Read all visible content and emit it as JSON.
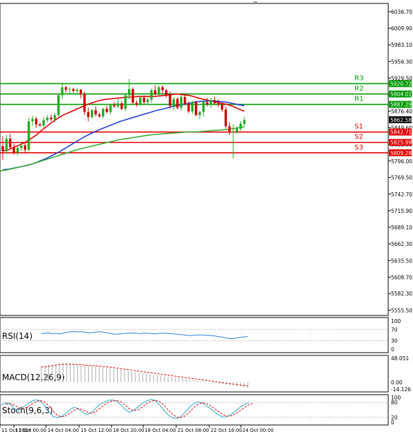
{
  "chart_data": {
    "type": "candlestick",
    "price_axis": {
      "ylim": [
        5547,
        6050
      ],
      "ticks": [
        "6036.70",
        "6009.90",
        "5983.10",
        "5956.30",
        "5929.50",
        "5902.70",
        "5876.40",
        "5849.60",
        "5822.80",
        "5796.00",
        "5769.50",
        "5742.70",
        "5715.90",
        "5689.10",
        "5662.30",
        "5635.50",
        "5608.70",
        "5582.30",
        "5555.50"
      ]
    },
    "levels": [
      {
        "name": "R3",
        "value": 5920.72,
        "label": "5920.72",
        "color": "#009900"
      },
      {
        "name": "R2",
        "value": 5904.01,
        "label": "5904.01",
        "color": "#009900"
      },
      {
        "name": "R1",
        "value": 5887.29,
        "label": "5887.29",
        "color": "#009900"
      },
      {
        "name": "S1",
        "value": 5842.71,
        "label": "5842.71",
        "color": "#e00000"
      },
      {
        "name": "S2",
        "value": 5825.99,
        "label": "5825.99",
        "color": "#e00000"
      },
      {
        "name": "S3",
        "value": 5809.28,
        "label": "5809.28",
        "color": "#e00000"
      }
    ],
    "current_price": {
      "value": 5862.58,
      "label": "5862.58"
    },
    "x_labels": [
      "11 Oct 2024",
      "11 Oct 00:00",
      "14 Oct 04:00",
      "15 Oct 12:00",
      "16 Oct 20:00",
      "18 Oct 04:00",
      "21 Oct 08:00",
      "22 Oct 16:00",
      "24 Oct 00:00"
    ],
    "candles": [
      [
        5820,
        5836,
        5798,
        5812
      ],
      [
        5812,
        5838,
        5808,
        5832
      ],
      [
        5832,
        5840,
        5816,
        5818
      ],
      [
        5818,
        5824,
        5806,
        5810
      ],
      [
        5810,
        5820,
        5805,
        5817
      ],
      [
        5817,
        5826,
        5812,
        5821
      ],
      [
        5821,
        5827,
        5810,
        5814
      ],
      [
        5814,
        5866,
        5812,
        5860
      ],
      [
        5860,
        5869,
        5853,
        5864
      ],
      [
        5864,
        5867,
        5849,
        5855
      ],
      [
        5855,
        5858,
        5852,
        5853
      ],
      [
        5853,
        5867,
        5850,
        5862
      ],
      [
        5862,
        5870,
        5858,
        5866
      ],
      [
        5866,
        5871,
        5860,
        5863
      ],
      [
        5863,
        5874,
        5858,
        5870
      ],
      [
        5870,
        5905,
        5866,
        5902
      ],
      [
        5902,
        5922,
        5896,
        5915
      ],
      [
        5915,
        5917,
        5906,
        5911
      ],
      [
        5911,
        5915,
        5904,
        5912
      ],
      [
        5912,
        5914,
        5906,
        5909
      ],
      [
        5909,
        5913,
        5903,
        5911
      ],
      [
        5911,
        5912,
        5897,
        5904
      ],
      [
        5904,
        5908,
        5870,
        5875
      ],
      [
        5875,
        5882,
        5860,
        5867
      ],
      [
        5867,
        5880,
        5864,
        5878
      ],
      [
        5878,
        5884,
        5868,
        5871
      ],
      [
        5871,
        5874,
        5866,
        5868
      ],
      [
        5868,
        5882,
        5865,
        5880
      ],
      [
        5880,
        5885,
        5873,
        5875
      ],
      [
        5875,
        5888,
        5871,
        5886
      ],
      [
        5886,
        5891,
        5882,
        5884
      ],
      [
        5884,
        5896,
        5881,
        5889
      ],
      [
        5889,
        5892,
        5878,
        5880
      ],
      [
        5880,
        5906,
        5876,
        5902
      ],
      [
        5902,
        5928,
        5895,
        5912
      ],
      [
        5912,
        5915,
        5888,
        5890
      ],
      [
        5890,
        5894,
        5884,
        5887
      ],
      [
        5887,
        5900,
        5885,
        5898
      ],
      [
        5898,
        5902,
        5888,
        5891
      ],
      [
        5891,
        5898,
        5887,
        5895
      ],
      [
        5895,
        5913,
        5890,
        5910
      ],
      [
        5910,
        5918,
        5902,
        5904
      ],
      [
        5904,
        5918,
        5900,
        5915
      ],
      [
        5915,
        5918,
        5905,
        5910
      ],
      [
        5910,
        5912,
        5898,
        5903
      ],
      [
        5903,
        5908,
        5880,
        5885
      ],
      [
        5885,
        5899,
        5878,
        5896
      ],
      [
        5896,
        5899,
        5879,
        5882
      ],
      [
        5882,
        5902,
        5878,
        5899
      ],
      [
        5899,
        5903,
        5886,
        5888
      ],
      [
        5888,
        5892,
        5873,
        5876
      ],
      [
        5876,
        5893,
        5872,
        5891
      ],
      [
        5891,
        5893,
        5868,
        5870
      ],
      [
        5870,
        5877,
        5864,
        5875
      ],
      [
        5875,
        5895,
        5868,
        5891
      ],
      [
        5891,
        5898,
        5884,
        5887
      ],
      [
        5887,
        5898,
        5882,
        5894
      ],
      [
        5894,
        5900,
        5886,
        5889
      ],
      [
        5889,
        5895,
        5883,
        5887
      ],
      [
        5887,
        5890,
        5875,
        5879
      ],
      [
        5879,
        5884,
        5848,
        5852
      ],
      [
        5852,
        5858,
        5838,
        5842
      ],
      [
        5842,
        5855,
        5800,
        5843
      ],
      [
        5843,
        5852,
        5840,
        5848
      ],
      [
        5848,
        5860,
        5845,
        5856
      ],
      [
        5856,
        5867,
        5852,
        5862
      ]
    ],
    "indicators": {
      "rsi": {
        "title": "RSI(14)",
        "ticks": [
          "100",
          "70",
          "30",
          "0"
        ],
        "ylim": [
          0,
          100
        ],
        "values": [
          55,
          57,
          58,
          55,
          56,
          54,
          57,
          60,
          62,
          63,
          61,
          62,
          60,
          58,
          59,
          61,
          62,
          60,
          58,
          55,
          53,
          54,
          55,
          56,
          57,
          58,
          56,
          55,
          57,
          56,
          55,
          54,
          56,
          57,
          56,
          55,
          54,
          53,
          52,
          50,
          48,
          49,
          50,
          51,
          50,
          49,
          48,
          47,
          45,
          43,
          40,
          38,
          37,
          40,
          42,
          44,
          45
        ]
      },
      "macd": {
        "title": "MACD(12,26,9)",
        "ticks": [
          "48.051",
          "0.00",
          "-14.126"
        ],
        "ylim": [
          -14.126,
          48.051
        ],
        "histogram": [
          31,
          33,
          34,
          35,
          36,
          37,
          38,
          38,
          38,
          37,
          36,
          35,
          34,
          33,
          33,
          32,
          31,
          30,
          29,
          28,
          27,
          26,
          25,
          24,
          22,
          21,
          20,
          19,
          18,
          17,
          16,
          15,
          14,
          13,
          12,
          11,
          10,
          9,
          8,
          7,
          6,
          5,
          4,
          3,
          2,
          1,
          0,
          -1,
          -2,
          -3,
          -4,
          -5,
          -6,
          -7,
          -8,
          -9,
          -10,
          -11
        ],
        "signal": [
          30,
          31,
          32,
          33,
          34,
          35,
          36,
          36,
          36,
          36,
          35,
          35,
          34,
          34,
          33,
          33,
          32,
          31,
          31,
          30,
          29,
          28,
          27,
          26,
          25,
          24,
          23,
          22,
          21,
          20,
          19,
          18,
          17,
          16,
          15,
          14,
          13,
          12,
          11,
          10,
          9,
          8,
          7,
          6,
          5,
          4,
          3,
          2,
          1,
          0,
          -1,
          -2,
          -3,
          -4,
          -5,
          -6,
          -7,
          -8
        ]
      },
      "stoch": {
        "title": "Stoch(9,6,3)",
        "ticks": [
          "100",
          "80",
          "20",
          "0"
        ],
        "ylim": [
          0,
          100
        ],
        "k": [
          70,
          78,
          75,
          55,
          48,
          60,
          72,
          85,
          90,
          88,
          70,
          45,
          25,
          18,
          22,
          35,
          50,
          60,
          55,
          40,
          30,
          38,
          55,
          72,
          80,
          88,
          90,
          85,
          70,
          50,
          40,
          48,
          62,
          75,
          86,
          92,
          88,
          70,
          50,
          30,
          18,
          15,
          22,
          40,
          60,
          75,
          82,
          78,
          65,
          55,
          40,
          28,
          20,
          25,
          35,
          48,
          62,
          72,
          80
        ]
      }
    },
    "moving_averages": [
      {
        "color": "#e00000",
        "values": [
          5812,
          5814,
          5818,
          5822,
          5826,
          5832,
          5838,
          5846,
          5853,
          5860,
          5866,
          5871,
          5875,
          5879,
          5883,
          5887,
          5890,
          5893,
          5895,
          5896,
          5897,
          5898,
          5899,
          5899,
          5900,
          5900,
          5900,
          5900,
          5901,
          5902,
          5903,
          5904,
          5903,
          5902,
          5900,
          5897,
          5895,
          5893,
          5891,
          5889,
          5887,
          5884,
          5880,
          5876
        ]
      },
      {
        "color": "#1f3fd0",
        "values": [
          5782,
          5783,
          5785,
          5787,
          5789,
          5792,
          5796,
          5800,
          5805,
          5810,
          5816,
          5822,
          5828,
          5834,
          5839,
          5844,
          5848,
          5852,
          5856,
          5860,
          5863,
          5866,
          5869,
          5872,
          5875,
          5878,
          5880,
          5883,
          5885,
          5887,
          5889,
          5891,
          5892,
          5893,
          5893,
          5892,
          5891,
          5889,
          5887,
          5885
        ]
      },
      {
        "color": "#3aaa3a",
        "values": [
          5780,
          5782,
          5785,
          5788,
          5791,
          5795,
          5799,
          5803,
          5807,
          5811,
          5815,
          5818,
          5821,
          5824,
          5827,
          5830,
          5832,
          5834,
          5836,
          5838,
          5839,
          5840,
          5841,
          5842,
          5843,
          5843,
          5844,
          5845,
          5846,
          5847,
          5849,
          5851
        ]
      }
    ]
  }
}
